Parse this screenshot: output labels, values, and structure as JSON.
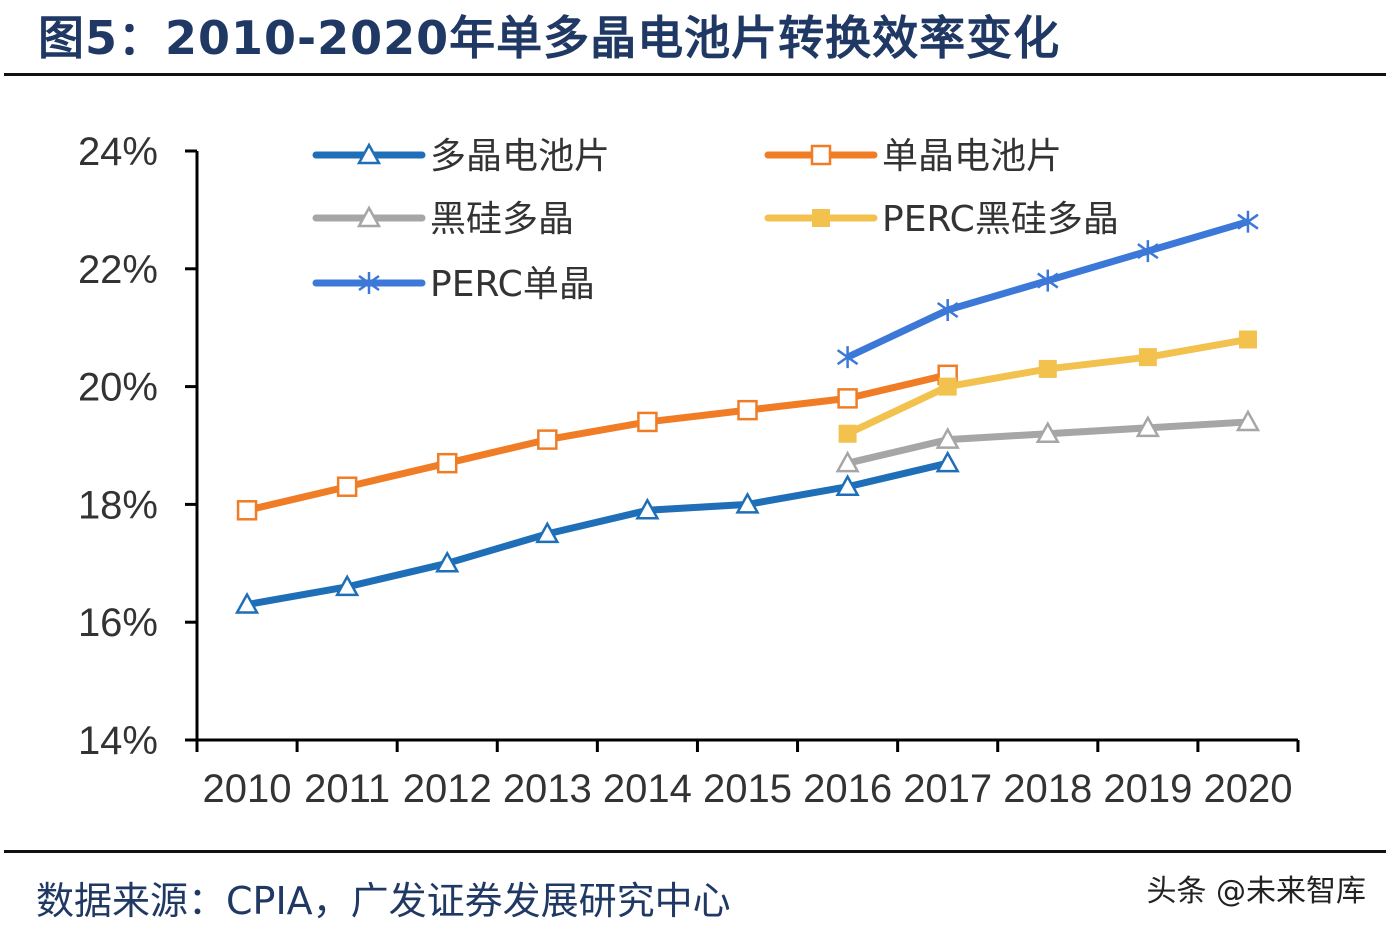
{
  "title": "图5：2010-2020年单多晶电池片转换效率变化",
  "source": "数据来源：CPIA，广发证券发展研究中心",
  "watermark": "头条 @未来智库",
  "chart_data": {
    "type": "line",
    "title": "",
    "xlabel": "",
    "ylabel": "",
    "categories": [
      "2010",
      "2011",
      "2012",
      "2013",
      "2014",
      "2015",
      "2016",
      "2017",
      "2018",
      "2019",
      "2020"
    ],
    "ylim": [
      14,
      24
    ],
    "yticks": [
      "14%",
      "16%",
      "18%",
      "20%",
      "22%",
      "24%"
    ],
    "ytick_values": [
      14,
      16,
      18,
      20,
      22,
      24
    ],
    "grid": false,
    "legend": "top",
    "series": [
      {
        "name": "多晶电池片",
        "color": "#1f6fb8",
        "marker": "triangle",
        "values": [
          16.3,
          16.6,
          17.0,
          17.5,
          17.9,
          18.0,
          18.3,
          18.7,
          null,
          null,
          null
        ]
      },
      {
        "name": "单晶电池片",
        "color": "#f07d26",
        "marker": "square-open",
        "values": [
          17.9,
          18.3,
          18.7,
          19.1,
          19.4,
          19.6,
          19.8,
          20.2,
          null,
          null,
          null
        ]
      },
      {
        "name": "黑硅多晶",
        "color": "#a6a6a6",
        "marker": "triangle",
        "values": [
          null,
          null,
          null,
          null,
          null,
          null,
          18.7,
          19.1,
          19.2,
          19.3,
          19.4
        ]
      },
      {
        "name": "PERC黑硅多晶",
        "color": "#f2c14e",
        "marker": "square-filled",
        "values": [
          null,
          null,
          null,
          null,
          null,
          null,
          19.2,
          20.0,
          20.3,
          20.5,
          20.8
        ]
      },
      {
        "name": "PERC单晶",
        "color": "#3c78d8",
        "marker": "asterisk",
        "values": [
          null,
          null,
          null,
          null,
          null,
          null,
          20.5,
          21.3,
          21.8,
          22.3,
          22.8
        ]
      }
    ]
  }
}
